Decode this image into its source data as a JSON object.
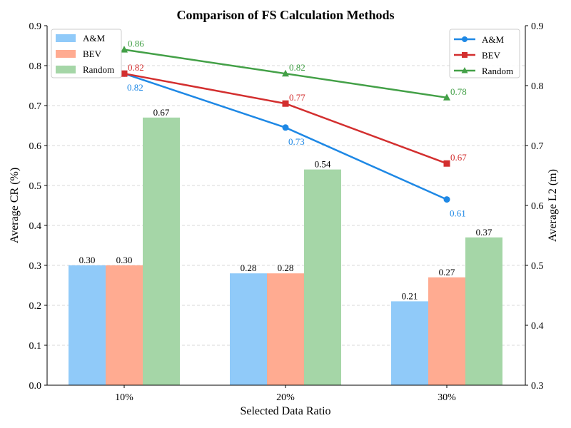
{
  "chart_data": {
    "type": "bar+line",
    "title": "Comparison of FS Calculation Methods",
    "xlabel": "Selected Data Ratio",
    "ylabel_left": "Average CR (%)",
    "ylabel_right": "Average L2 (m)",
    "categories": [
      "10%",
      "20%",
      "30%"
    ],
    "ylim_left": [
      0,
      0.9
    ],
    "ylim_right": [
      0.3,
      0.9
    ],
    "yticks_left": [
      0.0,
      0.1,
      0.2,
      0.3,
      0.4,
      0.5,
      0.6,
      0.7,
      0.8,
      0.9
    ],
    "yticks_right": [
      0.3,
      0.4,
      0.5,
      0.6,
      0.7,
      0.8,
      0.9
    ],
    "grid": true,
    "bar_series": [
      {
        "name": "A&M",
        "values": [
          0.3,
          0.28,
          0.21
        ],
        "labels": [
          "0.30",
          "0.28",
          "0.21"
        ],
        "color": "#90caf9"
      },
      {
        "name": "BEV",
        "values": [
          0.3,
          0.28,
          0.27
        ],
        "labels": [
          "0.30",
          "0.28",
          "0.27"
        ],
        "color": "#ffab91"
      },
      {
        "name": "Random",
        "values": [
          0.67,
          0.54,
          0.37
        ],
        "labels": [
          "0.67",
          "0.54",
          "0.37"
        ],
        "color": "#a5d6a7"
      }
    ],
    "line_series": [
      {
        "name": "A&M",
        "values": [
          0.82,
          0.73,
          0.61
        ],
        "labels": [
          "0.82",
          "0.73",
          "0.61"
        ],
        "color": "#1e88e5",
        "marker": "circle",
        "label_position": "below"
      },
      {
        "name": "BEV",
        "values": [
          0.82,
          0.77,
          0.67
        ],
        "labels": [
          "0.82",
          "0.77",
          "0.67"
        ],
        "color": "#d32f2f",
        "marker": "square",
        "label_position": "above"
      },
      {
        "name": "Random",
        "values": [
          0.86,
          0.82,
          0.78
        ],
        "labels": [
          "0.86",
          "0.82",
          "0.78"
        ],
        "color": "#43a047",
        "marker": "triangle",
        "label_position": "above"
      }
    ],
    "legend_bars_position": "top-left",
    "legend_lines_position": "top-right"
  }
}
